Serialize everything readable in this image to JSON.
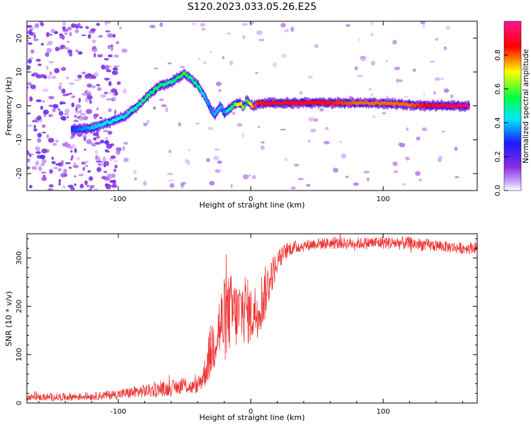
{
  "figure": {
    "title": "S120.2023.033.05.26.E25"
  },
  "chart_data": [
    {
      "type": "heatmap",
      "xlabel": "Height of straight line (km)",
      "ylabel": "Frequency (Hz)",
      "xlim": [
        -169,
        171
      ],
      "ylim": [
        -25,
        25
      ],
      "x_ticks": [
        -100,
        0,
        100
      ],
      "y_ticks": [
        -20,
        -10,
        0,
        10,
        20
      ],
      "grid": false,
      "colorbar": {
        "label": "Normalized spectral amplitude",
        "range": [
          0,
          1
        ],
        "ticks": [
          0.0,
          0.2,
          0.4,
          0.6,
          0.8
        ],
        "colormap": [
          "#ffffff",
          "#8a2be2",
          "#1a1aff",
          "#00e5ff",
          "#00ff40",
          "#ffff00",
          "#ff0000",
          "#ff1493"
        ]
      },
      "ridge": {
        "x": [
          -135,
          -120,
          -105,
          -95,
          -85,
          -75,
          -68,
          -60,
          -50,
          -45,
          -40,
          -35,
          -30,
          -27,
          -23,
          -20,
          -16,
          -12,
          -8,
          -5,
          -3,
          -1,
          2,
          6,
          10,
          20,
          40,
          60,
          80,
          100,
          120,
          140,
          165
        ],
        "y": [
          -7,
          -6.5,
          -4.5,
          -3,
          0,
          4,
          6,
          7,
          9.5,
          8,
          6,
          3,
          -1,
          -2.5,
          0,
          -2,
          -1,
          0.5,
          0.8,
          -0.5,
          2,
          0.8,
          -0.2,
          0.8,
          0.8,
          0.8,
          0.9,
          0.9,
          0.8,
          0.8,
          0.3,
          0.1,
          0.0
        ],
        "amplitude": [
          0.3,
          0.4,
          0.45,
          0.45,
          0.5,
          0.55,
          0.55,
          0.5,
          0.6,
          0.5,
          0.55,
          0.4,
          0.35,
          0.4,
          0.4,
          0.35,
          0.5,
          0.6,
          0.75,
          0.6,
          0.55,
          0.65,
          0.8,
          0.85,
          0.85,
          0.85,
          0.85,
          0.85,
          0.8,
          0.8,
          0.8,
          0.9,
          0.95
        ]
      }
    },
    {
      "type": "line",
      "xlabel": "Height of straight line (km)",
      "ylabel": "SNR (10 * v/v)",
      "xlim": [
        -169,
        171
      ],
      "ylim": [
        0,
        350
      ],
      "x_ticks": [
        -100,
        0,
        100
      ],
      "y_ticks": [
        0,
        100,
        200,
        300
      ],
      "grid": false,
      "series": [
        {
          "color": "#ee3333",
          "x": [
            -169,
            -150,
            -120,
            -100,
            -80,
            -60,
            -50,
            -45,
            -40,
            -35,
            -30,
            -25,
            -20,
            -15,
            -10,
            -5,
            0,
            5,
            10,
            15,
            20,
            25,
            30,
            40,
            50,
            60,
            80,
            100,
            120,
            140,
            160,
            171
          ],
          "y": [
            12,
            12,
            14,
            18,
            25,
            30,
            38,
            32,
            35,
            60,
            110,
            150,
            170,
            190,
            180,
            200,
            180,
            195,
            220,
            260,
            290,
            310,
            320,
            325,
            330,
            330,
            330,
            332,
            330,
            325,
            320,
            322
          ],
          "noise": [
            6,
            8,
            8,
            10,
            14,
            16,
            18,
            15,
            15,
            30,
            60,
            70,
            90,
            80,
            70,
            80,
            60,
            60,
            60,
            40,
            25,
            18,
            15,
            12,
            12,
            12,
            12,
            14,
            14,
            12,
            12,
            12
          ]
        }
      ]
    }
  ]
}
